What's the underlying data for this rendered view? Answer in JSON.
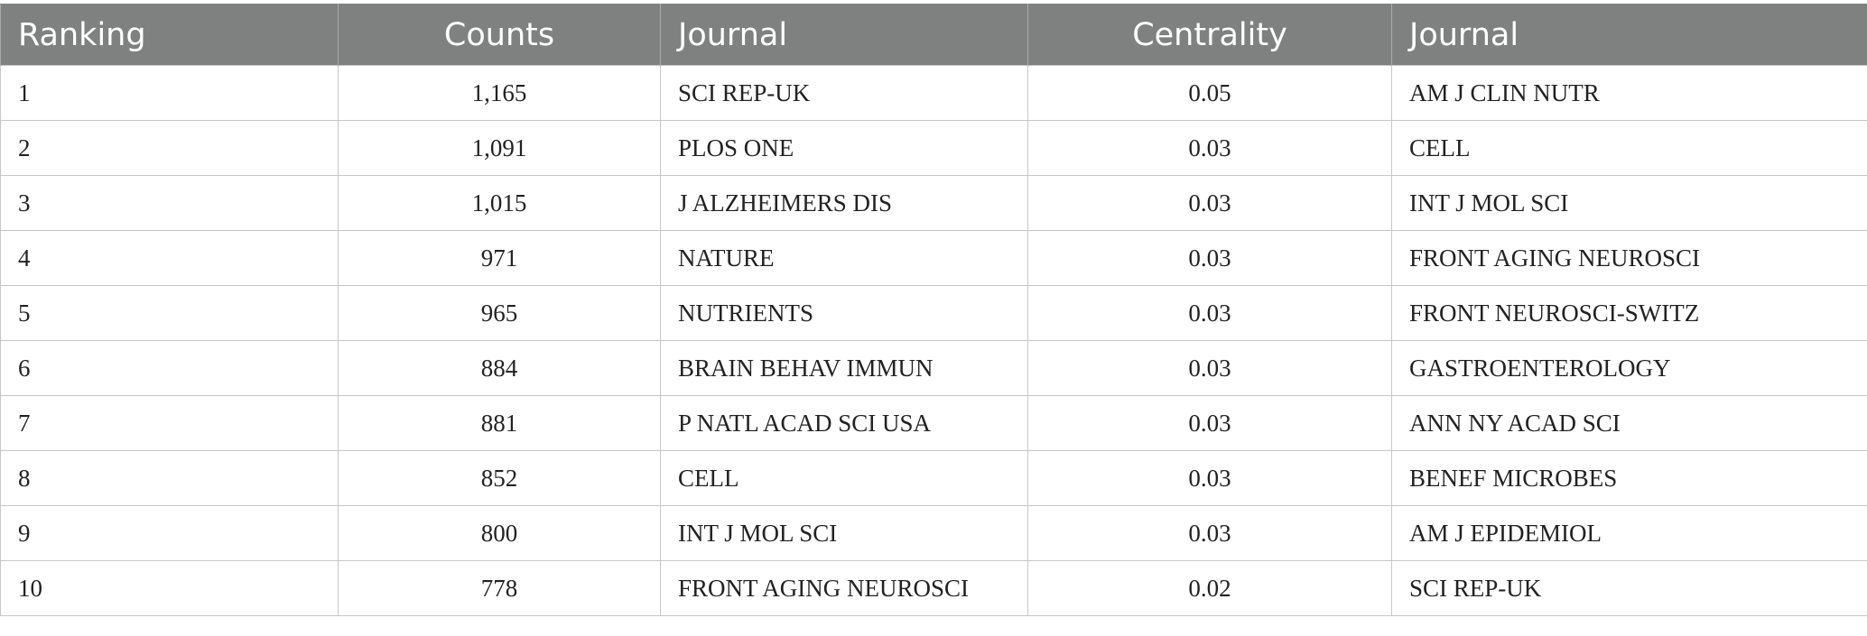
{
  "table": {
    "headers": [
      "Ranking",
      "Counts",
      "Journal",
      "Centrality",
      "Journal"
    ],
    "rows": [
      [
        "1",
        "1,165",
        "SCI REP-UK",
        "0.05",
        "AM J CLIN NUTR"
      ],
      [
        "2",
        "1,091",
        "PLOS ONE",
        "0.03",
        "CELL"
      ],
      [
        "3",
        "1,015",
        "J ALZHEIMERS DIS",
        "0.03",
        "INT J MOL SCI"
      ],
      [
        "4",
        "971",
        "NATURE",
        "0.03",
        "FRONT AGING NEUROSCI"
      ],
      [
        "5",
        "965",
        "NUTRIENTS",
        "0.03",
        "FRONT NEUROSCI-SWITZ"
      ],
      [
        "6",
        "884",
        "BRAIN BEHAV IMMUN",
        "0.03",
        "GASTROENTEROLOGY"
      ],
      [
        "7",
        "881",
        "P NATL ACAD SCI USA",
        "0.03",
        "ANN NY ACAD SCI"
      ],
      [
        "8",
        "852",
        "CELL",
        "0.03",
        "BENEF MICROBES"
      ],
      [
        "9",
        "800",
        "INT J MOL SCI",
        "0.03",
        "AM J EPIDEMIOL"
      ],
      [
        "10",
        "778",
        "FRONT AGING NEUROSCI",
        "0.02",
        "SCI REP-UK"
      ]
    ]
  }
}
